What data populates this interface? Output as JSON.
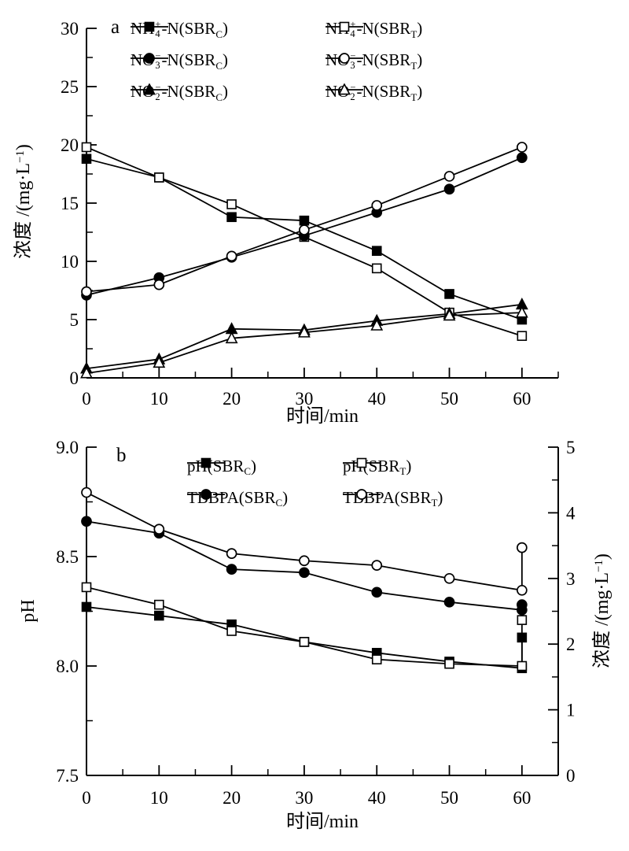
{
  "figure": {
    "background": "#ffffff",
    "ink": "#000000"
  },
  "chart_data": [
    {
      "id": "panel-a",
      "type": "line",
      "panel_label": "a",
      "xlabel": "时间/min",
      "ylabel_plain": "浓度 /(mg·L⁻¹)",
      "ylabel_segments": [
        {
          "text": "浓度 /(mg·L"
        },
        {
          "sup": "−1"
        },
        {
          "text": ")"
        }
      ],
      "xlim": [
        0,
        65
      ],
      "ylim": [
        0,
        30
      ],
      "xticks": [
        0,
        10,
        20,
        30,
        40,
        50,
        60
      ],
      "xtick_labels": [
        "0",
        "10",
        "20",
        "30",
        "40",
        "50",
        "60"
      ],
      "xminor_step": 5,
      "yticks": [
        0,
        5,
        10,
        15,
        20,
        25,
        30
      ],
      "ytick_labels": [
        "0",
        "5",
        "10",
        "15",
        "20",
        "25",
        "30"
      ],
      "yminor_step": 2.5,
      "grid": false,
      "legend_position": "top-inside-two-columns",
      "x": [
        0,
        10,
        20,
        30,
        40,
        50,
        60
      ],
      "series": [
        {
          "name": "NH4+-N(SBRC)",
          "marker": "square",
          "fill": "filled",
          "axis": "left",
          "values": [
            18.8,
            17.2,
            13.8,
            13.5,
            10.9,
            7.2,
            5.0
          ],
          "label_segments": [
            {
              "text": "NH"
            },
            {
              "stack": {
                "sup": "+",
                "sub": "4"
              }
            },
            {
              "text": "-N(SBR"
            },
            {
              "sub": "C"
            },
            {
              "text": ")"
            }
          ]
        },
        {
          "name": "NH4+-N(SBRT)",
          "marker": "square",
          "fill": "open",
          "axis": "left",
          "values": [
            19.8,
            17.2,
            14.9,
            12.1,
            9.4,
            5.6,
            3.6
          ],
          "label_segments": [
            {
              "text": "NH"
            },
            {
              "stack": {
                "sup": "+",
                "sub": "4"
              }
            },
            {
              "text": "-N(SBR"
            },
            {
              "sub": "T"
            },
            {
              "text": ")"
            }
          ]
        },
        {
          "name": "NO3--N(SBRC)",
          "marker": "circle",
          "fill": "filled",
          "axis": "left",
          "values": [
            7.1,
            8.6,
            10.35,
            12.2,
            14.2,
            16.2,
            18.9
          ],
          "label_segments": [
            {
              "text": "NO"
            },
            {
              "stack": {
                "sup": "−",
                "sub": "3"
              }
            },
            {
              "text": "-N(SBR"
            },
            {
              "sub": "C"
            },
            {
              "text": ")"
            }
          ]
        },
        {
          "name": "NO3--N(SBRT)",
          "marker": "circle",
          "fill": "open",
          "axis": "left",
          "values": [
            7.4,
            8.0,
            10.45,
            12.7,
            14.8,
            17.3,
            19.8
          ],
          "label_segments": [
            {
              "text": "NO"
            },
            {
              "stack": {
                "sup": "−",
                "sub": "3"
              }
            },
            {
              "text": "-N(SBR"
            },
            {
              "sub": "T"
            },
            {
              "text": ")"
            }
          ]
        },
        {
          "name": "NO2--N(SBRC)",
          "marker": "triangle",
          "fill": "filled",
          "axis": "left",
          "values": [
            0.8,
            1.6,
            4.2,
            4.1,
            4.9,
            5.5,
            6.3
          ],
          "label_segments": [
            {
              "text": "NO"
            },
            {
              "stack": {
                "sup": "−",
                "sub": "2"
              }
            },
            {
              "text": "-N(SBR"
            },
            {
              "sub": "C"
            },
            {
              "text": ")"
            }
          ]
        },
        {
          "name": "NO2--N(SBRT)",
          "marker": "triangle",
          "fill": "open",
          "axis": "left",
          "values": [
            0.4,
            1.3,
            3.4,
            3.9,
            4.5,
            5.35,
            5.6
          ],
          "label_segments": [
            {
              "text": "NO"
            },
            {
              "stack": {
                "sup": "−",
                "sub": "2"
              }
            },
            {
              "text": "-N(SBR"
            },
            {
              "sub": "T"
            },
            {
              "text": ")"
            }
          ]
        }
      ]
    },
    {
      "id": "panel-b",
      "type": "line-dual-axis",
      "panel_label": "b",
      "xlabel": "时间/min",
      "ylabel_left_plain": "pH",
      "ylabel_left_segments": [
        {
          "text": "pH"
        }
      ],
      "ylabel_right_plain": "浓度/(mg·L⁻¹)",
      "ylabel_right_segments": [
        {
          "text": "浓度 /(mg·L"
        },
        {
          "sup": "−1"
        },
        {
          "text": ")"
        }
      ],
      "xlim": [
        0,
        65
      ],
      "ylim_left": [
        7.5,
        9.0
      ],
      "ylim_right": [
        0,
        5
      ],
      "xticks": [
        0,
        10,
        20,
        30,
        40,
        50,
        60
      ],
      "xtick_labels": [
        "0",
        "10",
        "20",
        "30",
        "40",
        "50",
        "60"
      ],
      "xminor_step": 5,
      "yticks_left": [
        7.5,
        8.0,
        8.5,
        9.0
      ],
      "ytick_labels_left": [
        "7.5",
        "8.0",
        "8.5",
        "9.0"
      ],
      "yminor_step_left": 0.25,
      "yticks_right": [
        0,
        1,
        2,
        3,
        4,
        5
      ],
      "ytick_labels_right": [
        "0",
        "1",
        "2",
        "3",
        "4",
        "5"
      ],
      "yminor_step_right": 0.5,
      "grid": false,
      "legend_position": "top-inside-two-columns",
      "x": [
        0,
        10,
        20,
        30,
        40,
        50,
        60
      ],
      "series": [
        {
          "name": "pH(SBRC)",
          "marker": "square",
          "fill": "filled",
          "axis": "left",
          "values": [
            8.27,
            8.23,
            8.19,
            8.11,
            8.06,
            8.02,
            7.99
          ],
          "extra_point": {
            "x": 60,
            "value": 8.13
          },
          "label_segments": [
            {
              "text": "pH(SBR"
            },
            {
              "sub": "C"
            },
            {
              "text": ")"
            }
          ]
        },
        {
          "name": "pH(SBRT)",
          "marker": "square",
          "fill": "open",
          "axis": "left",
          "values": [
            8.36,
            8.28,
            8.16,
            8.11,
            8.03,
            8.01,
            8.0
          ],
          "extra_point": {
            "x": 60,
            "value": 8.21
          },
          "label_segments": [
            {
              "text": "pH(SBR"
            },
            {
              "sub": "T"
            },
            {
              "text": ")"
            }
          ]
        },
        {
          "name": "TBBPA(SBRC)",
          "marker": "circle",
          "fill": "filled",
          "axis": "right",
          "values": [
            3.87,
            3.69,
            3.14,
            3.09,
            2.79,
            2.64,
            2.52
          ],
          "extra_point": {
            "x": 60,
            "value": 2.6
          },
          "legend_gap": true,
          "label_segments": [
            {
              "text": "TBBPA(SBR"
            },
            {
              "sub": "C"
            },
            {
              "text": ")"
            }
          ]
        },
        {
          "name": "TBBPA(SBRT)",
          "marker": "circle",
          "fill": "open",
          "axis": "right",
          "values": [
            4.31,
            3.75,
            3.38,
            3.27,
            3.2,
            3.0,
            2.82
          ],
          "extra_point": {
            "x": 60,
            "value": 3.47
          },
          "legend_gap": true,
          "label_segments": [
            {
              "text": "TBBPA(SBR"
            },
            {
              "sub": "T"
            },
            {
              "text": ")"
            }
          ]
        }
      ]
    }
  ]
}
